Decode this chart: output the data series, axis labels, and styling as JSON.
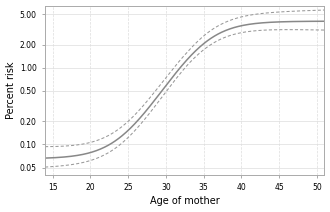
{
  "title": "",
  "xlabel": "Age of mother",
  "ylabel": "Percent risk",
  "xmin": 14,
  "xmax": 51,
  "yticks": [
    0.05,
    0.1,
    0.2,
    0.5,
    1.0,
    2.0,
    5.0
  ],
  "ytick_labels": [
    "0.05",
    "0.10",
    "0.20",
    "0.50",
    "1.00",
    "2.00",
    "5.00"
  ],
  "xticks": [
    15,
    20,
    25,
    30,
    35,
    40,
    45,
    50
  ],
  "line_color": "#888888",
  "ci_color": "#999999",
  "background_color": "#ffffff",
  "grid_color": "#dddddd",
  "figsize": [
    3.3,
    2.12
  ],
  "dpi": 100,
  "sigmoid_L": 4.0,
  "sigmoid_k": 0.38,
  "sigmoid_x0": 35.0,
  "sigmoid_base": 0.065,
  "ci_factor_low": 0.22,
  "ci_factor_high": 0.28
}
